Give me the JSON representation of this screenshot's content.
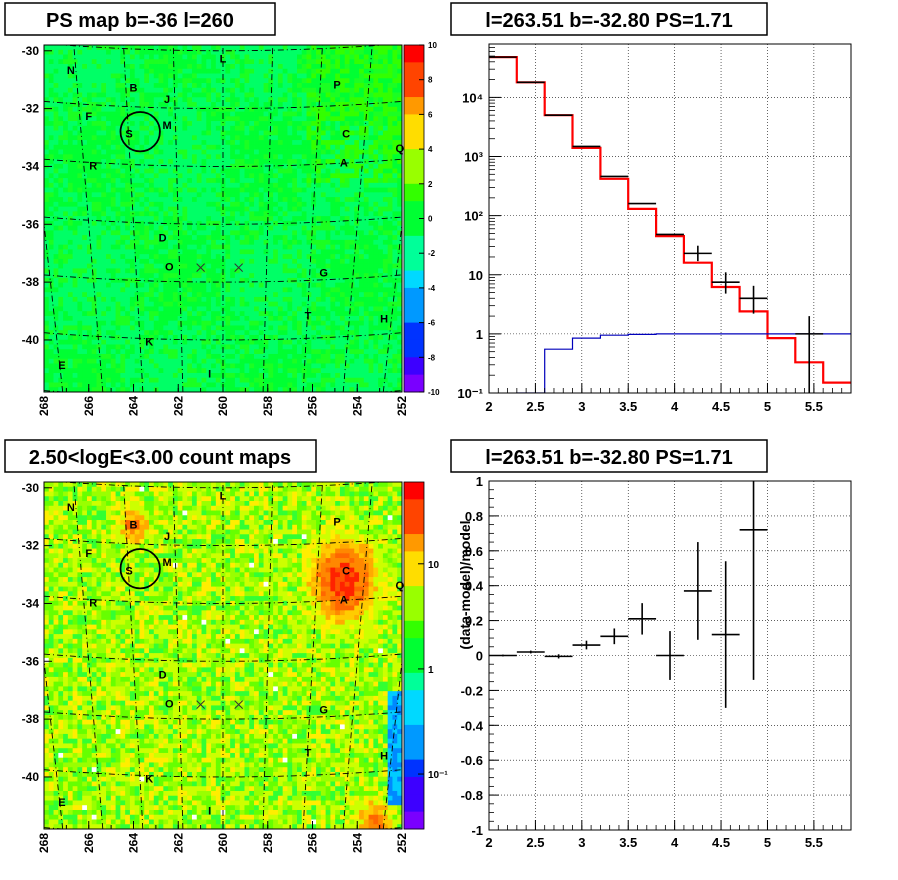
{
  "chart_data": [
    {
      "type": "heatmap",
      "title": "PS map b=-36 l=260",
      "x_ticks": [
        "268",
        "266",
        "264",
        "262",
        "260",
        "258",
        "256",
        "254",
        "252"
      ],
      "y_ticks": [
        "-30",
        "-32",
        "-34",
        "-36",
        "-38",
        "-40"
      ],
      "xlim": [
        268,
        252
      ],
      "ylim": [
        -41.8,
        -29.8
      ],
      "colorbar_ticks": [
        "10",
        "8",
        "6",
        "4",
        "2",
        "0",
        "-2",
        "-4",
        "-6",
        "-8",
        "-10"
      ],
      "colorbar_range": [
        -10,
        10
      ],
      "source_labels": [
        {
          "label": "N",
          "l": 266.8,
          "b": -30.8
        },
        {
          "label": "L",
          "l": 260.0,
          "b": -30.4
        },
        {
          "label": "B",
          "l": 264.0,
          "b": -31.4
        },
        {
          "label": "P",
          "l": 254.9,
          "b": -31.3
        },
        {
          "label": "J",
          "l": 262.5,
          "b": -31.8
        },
        {
          "label": "F",
          "l": 266.0,
          "b": -32.4
        },
        {
          "label": "M",
          "l": 262.5,
          "b": -32.7
        },
        {
          "label": "S",
          "l": 264.2,
          "b": -33.0
        },
        {
          "label": "C",
          "l": 254.5,
          "b": -33.0
        },
        {
          "label": "Q",
          "l": 252.1,
          "b": -33.5
        },
        {
          "label": "A",
          "l": 254.6,
          "b": -34.0
        },
        {
          "label": "R",
          "l": 265.8,
          "b": -34.1
        },
        {
          "label": "D",
          "l": 262.7,
          "b": -36.6
        },
        {
          "label": "O",
          "l": 262.4,
          "b": -37.6
        },
        {
          "label": "G",
          "l": 255.5,
          "b": -37.8
        },
        {
          "label": "T",
          "l": 256.2,
          "b": -39.3
        },
        {
          "label": "H",
          "l": 252.8,
          "b": -39.4
        },
        {
          "label": "K",
          "l": 263.3,
          "b": -40.2
        },
        {
          "label": "E",
          "l": 267.2,
          "b": -41.0
        },
        {
          "label": "I",
          "l": 260.6,
          "b": -41.3
        }
      ],
      "x_markers": [
        {
          "l": 261.0,
          "b": -37.5
        },
        {
          "l": 259.3,
          "b": -37.5
        }
      ],
      "circle": {
        "l": 263.7,
        "b": -32.8,
        "r_deg": 0.55
      },
      "colormap": [
        "#7a00ff",
        "#3d00ff",
        "#0033ff",
        "#0099ff",
        "#00d9ff",
        "#00ff99",
        "#00ff33",
        "#33ff00",
        "#99ff00",
        "#ffdd00",
        "#ff9900",
        "#ff4400",
        "#ff0000"
      ]
    },
    {
      "type": "line",
      "title": "l=263.51 b=-32.80 PS=1.71",
      "ylog": true,
      "xlim": [
        2,
        5.9
      ],
      "ylim": [
        0.1,
        80000
      ],
      "x_ticks": [
        "2",
        "2.5",
        "3",
        "3.5",
        "4",
        "4.5",
        "5",
        "5.5"
      ],
      "y_ticks": [
        "10⁻¹",
        "1",
        "10",
        "10²",
        "10³",
        "10⁴"
      ],
      "series": [
        {
          "color": "#ff0000",
          "edges": [
            2.0,
            2.3,
            2.6,
            2.9,
            3.2,
            3.5,
            3.8,
            4.1,
            4.4,
            4.7,
            5.0,
            5.3,
            5.6,
            5.9
          ],
          "values": [
            48000,
            18000,
            5000,
            1400,
            420,
            130,
            45,
            16,
            6.2,
            2.4,
            0.85,
            0.33,
            0.15
          ]
        },
        {
          "color": "#0000bb",
          "edges": [
            2.0,
            2.3,
            2.6,
            2.9,
            3.2,
            3.5,
            3.8,
            4.1,
            4.4,
            4.7,
            5.0,
            5.3,
            5.6,
            5.9
          ],
          "values": [
            0.05,
            0.1,
            0.55,
            0.85,
            0.95,
            0.98,
            1.0,
            1.0,
            1.0,
            1.0,
            1.0,
            1.0,
            1.0
          ]
        },
        {
          "color": "#000000",
          "points": [
            {
              "x": 2.15,
              "y": 48000,
              "dx": 0.15
            },
            {
              "x": 2.45,
              "y": 18000,
              "dx": 0.15
            },
            {
              "x": 2.75,
              "y": 5000,
              "dx": 0.15
            },
            {
              "x": 3.05,
              "y": 1480,
              "dx": 0.15
            },
            {
              "x": 3.35,
              "y": 460,
              "dx": 0.15
            },
            {
              "x": 3.65,
              "y": 160,
              "dx": 0.15
            },
            {
              "x": 3.95,
              "y": 48,
              "dx": 0.15
            },
            {
              "x": 4.25,
              "y": 23,
              "dx": 0.15,
              "ylo": 17,
              "yhi": 31
            },
            {
              "x": 4.55,
              "y": 7.5,
              "dx": 0.15,
              "ylo": 4.8,
              "yhi": 11
            },
            {
              "x": 4.85,
              "y": 4,
              "dx": 0.15,
              "ylo": 2.2,
              "yhi": 6.5
            },
            {
              "x": 5.45,
              "y": 1,
              "dx": 0.15,
              "ylo": 0.1,
              "yhi": 2
            }
          ]
        }
      ]
    },
    {
      "type": "heatmap",
      "title": "2.50<logE<3.00 count maps",
      "x_ticks": [
        "268",
        "266",
        "264",
        "262",
        "260",
        "258",
        "256",
        "254",
        "252"
      ],
      "y_ticks": [
        "-30",
        "-32",
        "-34",
        "-36",
        "-38",
        "-40"
      ],
      "xlim": [
        268,
        252
      ],
      "ylim": [
        -41.8,
        -29.8
      ],
      "colorbar_ticks": [
        "10",
        "1",
        "10⁻¹"
      ],
      "colorbar_log_range": [
        0.03,
        60
      ],
      "hotspots": [
        {
          "l": 254.6,
          "b": -33.2,
          "r": 1.0,
          "level": 10
        },
        {
          "l": 264.0,
          "b": -31.3,
          "r": 0.5,
          "level": 4
        },
        {
          "l": 253.2,
          "b": -41.6,
          "r": 0.6,
          "level": 4
        }
      ]
    },
    {
      "type": "scatter",
      "title": "l=263.51 b=-32.80 PS=1.71",
      "ylabel": "(data-model)/model",
      "xlim": [
        2,
        5.9
      ],
      "ylim": [
        -1,
        1
      ],
      "x_ticks": [
        "2",
        "2.5",
        "3",
        "3.5",
        "4",
        "4.5",
        "5",
        "5.5"
      ],
      "y_ticks": [
        "1",
        "0.8",
        "0.6",
        "0.4",
        "0.2",
        "0",
        "-0.2",
        "-0.4",
        "-0.6",
        "-0.8",
        "-1"
      ],
      "points": [
        {
          "x": 2.15,
          "y": 0.0,
          "dx": 0.15,
          "err": 0.005
        },
        {
          "x": 2.45,
          "y": 0.02,
          "dx": 0.15,
          "err": 0.008
        },
        {
          "x": 2.75,
          "y": -0.005,
          "dx": 0.15,
          "err": 0.012
        },
        {
          "x": 3.05,
          "y": 0.06,
          "dx": 0.15,
          "err": 0.025
        },
        {
          "x": 3.35,
          "y": 0.11,
          "dx": 0.15,
          "err": 0.045
        },
        {
          "x": 3.65,
          "y": 0.21,
          "dx": 0.15,
          "err": 0.09
        },
        {
          "x": 3.95,
          "y": 0.0,
          "dx": 0.15,
          "err": 0.14
        },
        {
          "x": 4.25,
          "y": 0.37,
          "dx": 0.15,
          "err": 0.28
        },
        {
          "x": 4.55,
          "y": 0.12,
          "dx": 0.15,
          "err": 0.42
        },
        {
          "x": 4.85,
          "y": 0.72,
          "dx": 0.15,
          "err": 0.86
        }
      ]
    }
  ]
}
